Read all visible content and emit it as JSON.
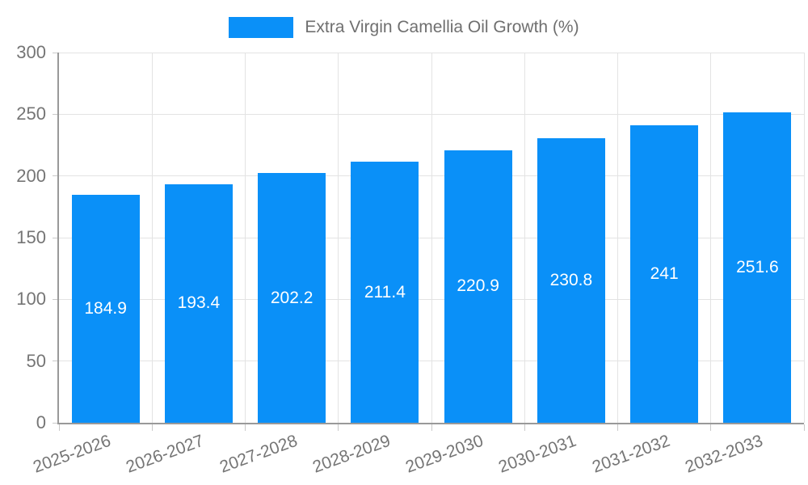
{
  "chart_data": {
    "type": "bar",
    "title": "",
    "legend": {
      "label": "Extra Virgin Camellia Oil Growth (%)",
      "position": "top-center"
    },
    "categories": [
      "2025-2026",
      "2026-2027",
      "2027-2028",
      "2028-2029",
      "2029-2030",
      "2030-2031",
      "2031-2032",
      "2032-2033"
    ],
    "values": [
      184.9,
      193.4,
      202.2,
      211.4,
      220.9,
      230.8,
      241,
      251.6
    ],
    "xlabel": "",
    "ylabel": "",
    "ylim": [
      0,
      300
    ],
    "yticks": [
      0,
      50,
      100,
      150,
      200,
      250,
      300
    ],
    "grid": true,
    "value_labels_inside_bars": true,
    "x_label_rotation_deg": -20,
    "colors": {
      "bar": "#0a90f8",
      "grid": "#e3e3e3",
      "axis": "#999999",
      "tick": "#c9c9c9",
      "tick_text": "#757575",
      "bar_value_text": "#ffffff",
      "legend_text": "#6f6f6f",
      "background": "#ffffff"
    }
  }
}
